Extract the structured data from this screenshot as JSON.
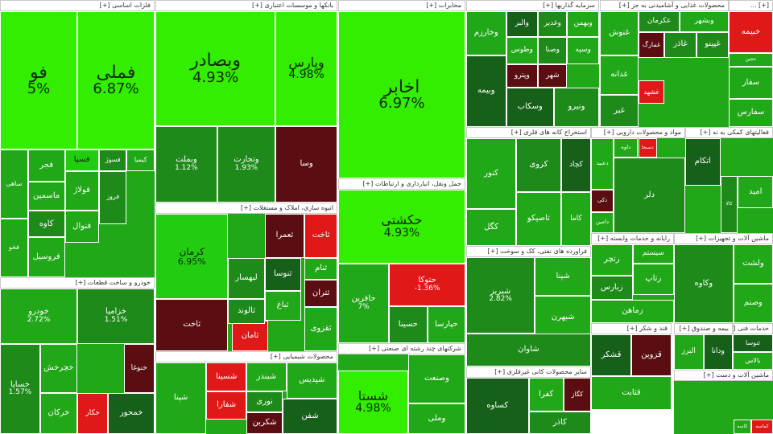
{
  "palette": {
    "lime": "#33ee00",
    "bright": "#22cc11",
    "green": "#21a818",
    "mid": "#1e8a1a",
    "dark": "#17601a",
    "darker": "#0f4510",
    "maroon": "#5a0e12",
    "red": "#e01818",
    "header_bg": "#ffffff"
  },
  "sectors": [
    {
      "label": "فلزات اساسی [+]",
      "tiles": [
        {
          "name": "فملی",
          "pct": "6.87%",
          "color": "lime",
          "size": "xl"
        },
        {
          "name": "فو",
          "pct": "5%",
          "color": "lime",
          "size": "xl"
        },
        {
          "name": "فجر",
          "color": "green"
        },
        {
          "name": "فسپا",
          "color": "bright"
        },
        {
          "name": "فسوژ",
          "color": "mid"
        },
        {
          "name": "کیمیا",
          "color": "green"
        },
        {
          "name": "ماسمین",
          "color": "green"
        },
        {
          "name": "کاوه",
          "color": "mid"
        },
        {
          "name": "فولاژ",
          "color": "green"
        },
        {
          "name": "فروسیل",
          "color": "green"
        },
        {
          "name": "فنوال",
          "color": "green"
        },
        {
          "name": "فروز",
          "color": "mid"
        },
        {
          "name": "ساهی",
          "color": "green"
        },
        {
          "name": "فخو",
          "color": "green"
        }
      ]
    },
    {
      "label": "بانکها و موسسات اعتباری [+]",
      "tiles": [
        {
          "name": "وبصادر",
          "pct": "4.93%",
          "color": "lime",
          "size": "xl"
        },
        {
          "name": "وپارس",
          "pct": "4.98%",
          "color": "lime",
          "size": "l"
        },
        {
          "name": "وبملت",
          "pct": "1.12%",
          "color": "mid"
        },
        {
          "name": "وتجارت",
          "pct": "1.93%",
          "color": "mid"
        },
        {
          "name": "وسا",
          "color": "maroon"
        }
      ]
    },
    {
      "label": "مخابرات [+]",
      "tiles": [
        {
          "name": "اخابر",
          "pct": "6.97%",
          "color": "lime",
          "size": "xl"
        }
      ]
    },
    {
      "label": "سرمایه گذاریها [+]",
      "tiles": [
        {
          "name": "والبر",
          "color": "dark"
        },
        {
          "name": "وخارزم",
          "color": "green"
        },
        {
          "name": "وغدیر",
          "color": "mid"
        },
        {
          "name": "وبهمن",
          "color": "green"
        },
        {
          "name": "وبیمه",
          "color": "dark"
        },
        {
          "name": "وپترو",
          "color": "maroon"
        },
        {
          "name": "وصنا",
          "color": "mid"
        },
        {
          "name": "وطوس",
          "color": "green"
        },
        {
          "name": "وسپه",
          "color": "green"
        },
        {
          "name": "شهر",
          "color": "maroon"
        },
        {
          "name": "وسکاب",
          "color": "dark"
        },
        {
          "name": "ونیرو",
          "color": "mid"
        }
      ]
    },
    {
      "label": "محصولات غذایی و آشامیدنی به جز [+]",
      "tiles": [
        {
          "name": "عکرمان",
          "color": "mid"
        },
        {
          "name": "وبشهر",
          "color": "green"
        },
        {
          "name": "غنوش",
          "color": "green"
        },
        {
          "name": "غدانه",
          "color": "green"
        },
        {
          "name": "غبر",
          "color": "mid"
        },
        {
          "name": "غشهد",
          "color": "red"
        },
        {
          "name": "غمارگ",
          "color": "maroon"
        },
        {
          "name": "غاذر",
          "color": "mid"
        },
        {
          "name": "غپینو",
          "color": "mid"
        }
      ]
    },
    {
      "label": "[+] ...",
      "tiles": [
        {
          "name": "خبیمه",
          "color": "red"
        },
        {
          "name": "عجین",
          "color": "green"
        },
        {
          "name": "سفار",
          "color": "green"
        },
        {
          "name": "سفارس",
          "color": "green"
        }
      ]
    },
    {
      "label": "خودرو و ساخت قطعات [+]",
      "tiles": [
        {
          "name": "خودرو",
          "pct": "2.72%",
          "color": "green"
        },
        {
          "name": "خزامیا",
          "pct": "1.51%",
          "color": "mid"
        },
        {
          "name": "خساپا",
          "pct": "1.57%",
          "color": "mid"
        },
        {
          "name": "خنوغا",
          "color": "maroon"
        },
        {
          "name": "خکار",
          "color": "red"
        },
        {
          "name": "خرکان",
          "color": "green"
        },
        {
          "name": "خمحور",
          "color": "dark"
        },
        {
          "name": "خچرخش",
          "color": "green"
        }
      ]
    },
    {
      "label": "انبوه سازی، املاک و مستغلات [+]",
      "tiles": [
        {
          "name": "کرمان",
          "pct": "6.95%",
          "color": "bright",
          "size": "m"
        },
        {
          "name": "ثاخت",
          "color": "red"
        },
        {
          "name": "ثامان",
          "color": "red"
        },
        {
          "name": "ثتران",
          "color": "maroon"
        },
        {
          "name": "ثعمرا",
          "color": "maroon"
        },
        {
          "name": "لبهسار",
          "color": "mid"
        },
        {
          "name": "ثنوسا",
          "color": "dark"
        },
        {
          "name": "ثالوند",
          "color": "mid"
        },
        {
          "name": "ثباغ",
          "color": "green"
        },
        {
          "name": "ثنام",
          "color": "green"
        },
        {
          "name": "ثقزوی",
          "color": "green"
        },
        {
          "name": "ثاخت",
          "color": "maroon"
        }
      ]
    },
    {
      "label": "حمل ونقل، انبارداری و ارتباطات [+]",
      "tiles": [
        {
          "name": "حکشتی",
          "pct": "4.93%",
          "color": "lime",
          "size": "l"
        },
        {
          "name": "حافرین",
          "pct": "7%",
          "color": "green"
        },
        {
          "name": "حتوکا",
          "pct": "-1.36%",
          "color": "red"
        },
        {
          "name": "حسینا",
          "color": "mid"
        },
        {
          "name": "حپارسا",
          "color": "green"
        }
      ]
    },
    {
      "label": "محصولات شیمیایی [+]",
      "tiles": [
        {
          "name": "شپنا",
          "color": "green"
        },
        {
          "name": "شسینا",
          "color": "red"
        },
        {
          "name": "شفارا",
          "color": "red"
        },
        {
          "name": "شبندر",
          "color": "green"
        },
        {
          "name": "نوری",
          "color": "mid"
        },
        {
          "name": "شپدیس",
          "color": "green"
        },
        {
          "name": "شفن",
          "color": "dark"
        },
        {
          "name": "شکربن",
          "color": "maroon"
        }
      ]
    },
    {
      "label": "شرکتهای چند رشته ای صنعتی [+]",
      "tiles": [
        {
          "name": "شستا",
          "pct": "4.98%",
          "color": "lime",
          "size": "l"
        },
        {
          "name": "وصنعت",
          "color": "green"
        },
        {
          "name": "وملی",
          "color": "green"
        }
      ]
    },
    {
      "label": "استخراج کانه های فلزی [+]",
      "tiles": [
        {
          "name": "کگل",
          "color": "green"
        },
        {
          "name": "تاصیکو",
          "color": "green"
        },
        {
          "name": "کچاد",
          "color": "dark"
        },
        {
          "name": "کنور",
          "color": "green"
        },
        {
          "name": "کروی",
          "color": "mid"
        },
        {
          "name": "کاما",
          "color": "green"
        }
      ]
    },
    {
      "label": "فراورده های نفتی، کک و سوخت [+]",
      "tiles": [
        {
          "name": "شبریز",
          "pct": "2.82%",
          "color": "mid"
        },
        {
          "name": "شپنا",
          "color": "green"
        },
        {
          "name": "شبهرن",
          "color": "green"
        },
        {
          "name": "شاوان",
          "color": "mid"
        }
      ]
    },
    {
      "label": "سایر محصولات کانی غیرفلزی [+]",
      "tiles": [
        {
          "name": "کگاز",
          "color": "maroon"
        },
        {
          "name": "کساوه",
          "color": "dark"
        },
        {
          "name": "کفرا",
          "color": "green"
        },
        {
          "name": "کاذر",
          "color": "mid"
        }
      ]
    },
    {
      "label": "مواد و محصولات دارویی [+]",
      "tiles": [
        {
          "name": "داوه",
          "color": "green"
        },
        {
          "name": "دعبید",
          "color": "green"
        },
        {
          "name": "دکی",
          "color": "maroon"
        },
        {
          "name": "دامین",
          "color": "green"
        },
        {
          "name": "دسبحا",
          "color": "red"
        },
        {
          "name": "دلر",
          "color": "mid"
        }
      ]
    },
    {
      "label": "فعالیتهای کمکی به نه [+]",
      "tiles": [
        {
          "name": "امید",
          "color": "green"
        },
        {
          "name": "کالا",
          "color": "mid"
        },
        {
          "name": "اتکام",
          "color": "dark"
        }
      ]
    },
    {
      "label": "رایانه و خدمات وابسته [+]",
      "tiles": [
        {
          "name": "رتچر",
          "color": "green"
        },
        {
          "name": "سیستم",
          "color": "green"
        },
        {
          "name": "زبارس",
          "color": "mid"
        },
        {
          "name": "رتاپ",
          "color": "green"
        },
        {
          "name": "زماهن",
          "color": "green"
        }
      ]
    },
    {
      "label": "ماشین آلات و تجهیزات [+]",
      "tiles": [
        {
          "name": "ولشت",
          "color": "green"
        },
        {
          "name": "وصنم",
          "color": "green"
        },
        {
          "name": "وکاوه",
          "color": "mid"
        }
      ]
    },
    {
      "label": "قند و شکر [+]",
      "tiles": [
        {
          "name": "قثابت",
          "color": "green"
        },
        {
          "name": "قشکر",
          "color": "dark"
        },
        {
          "name": "قزوین",
          "color": "maroon"
        }
      ]
    },
    {
      "label": "بیمه و صندوق [+]",
      "tiles": [
        {
          "name": "البرز",
          "color": "green"
        },
        {
          "name": "ودانا",
          "color": "dark"
        }
      ]
    },
    {
      "label": "خدمات فنی [+]",
      "tiles": [
        {
          "name": "ثنوسا",
          "color": "dark"
        },
        {
          "name": "بالاس",
          "color": "green"
        }
      ]
    },
    {
      "label": "ماشین آلات و دست [+]",
      "tiles": [
        {
          "name": "کماسه",
          "color": "red"
        },
        {
          "name": "کاسه",
          "color": "green"
        }
      ]
    }
  ]
}
